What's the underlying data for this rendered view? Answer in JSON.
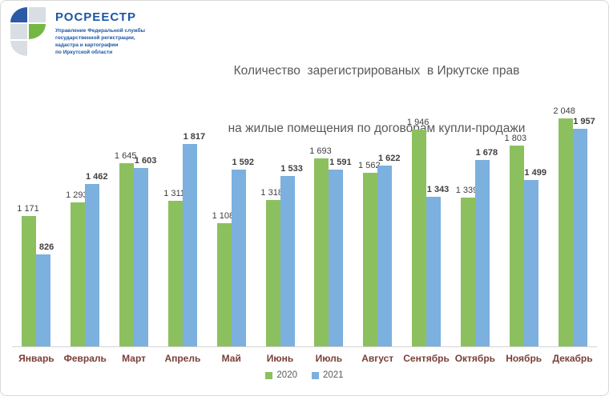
{
  "logo": {
    "brand": "РОСРЕЕСТР",
    "org_lines": [
      "Управление Федеральной службы",
      "государственной регистрации,",
      "кадастра и картографии",
      "по Иркутской области"
    ],
    "colors": {
      "blue": "#2c5aa5",
      "green": "#74b843",
      "gray": "#d9dde4"
    }
  },
  "title_lines": [
    "Количество  зарегистрированых  в Иркутске прав",
    "на жилые помещения по договорам купли-продажи"
  ],
  "chart_data": {
    "type": "bar",
    "title": "Количество зарегистрированых в Иркутске прав на жилые помещения по договорам купли-продажи",
    "categories": [
      "Январь",
      "Февраль",
      "Март",
      "Апрель",
      "Май",
      "Июнь",
      "Июль",
      "Август",
      "Сентябрь",
      "Октябрь",
      "Ноябрь",
      "Декабрь"
    ],
    "series": [
      {
        "name": "2020",
        "color": "#8cc05f",
        "values": [
          1171,
          1293,
          1645,
          1311,
          1108,
          1318,
          1693,
          1562,
          1946,
          1339,
          1803,
          2048
        ]
      },
      {
        "name": "2021",
        "color": "#7cb0de",
        "values": [
          826,
          1462,
          1603,
          1817,
          1592,
          1533,
          1591,
          1622,
          1343,
          1678,
          1499,
          1957
        ]
      }
    ],
    "xlabel": "",
    "ylabel": "",
    "ylim": [
      0,
      2100
    ],
    "grid": false,
    "value_labels_visible": true,
    "thousands_separator": " ",
    "legend_position": "bottom"
  }
}
